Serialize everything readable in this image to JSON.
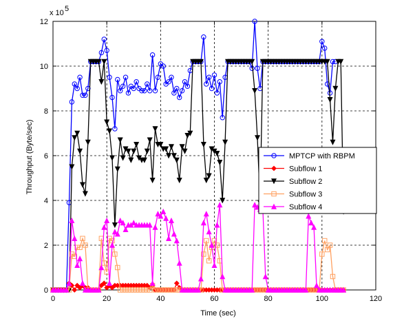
{
  "chart_data": {
    "type": "line",
    "xlabel": "Time (sec)",
    "ylabel": "Throughput (Byte/sec)",
    "x_ticks": [
      "0",
      "20",
      "40",
      "60",
      "80",
      "100",
      "120"
    ],
    "y_ticks": [
      "0",
      "2",
      "4",
      "6",
      "8",
      "10",
      "12"
    ],
    "xlim": [
      0,
      120
    ],
    "ylim": [
      0,
      12
    ],
    "y_multiplier": "x 10",
    "y_exponent": "5",
    "grid": true,
    "legend_position": "right",
    "series": [
      {
        "name": "MPTCP with RBPM",
        "color": "#0000ff",
        "marker": "circle",
        "x": [
          0,
          1,
          2,
          3,
          4,
          5,
          6,
          7,
          8,
          9,
          10,
          11,
          12,
          13,
          14,
          15,
          16,
          17,
          18,
          19,
          20,
          21,
          22,
          23,
          24,
          25,
          26,
          27,
          28,
          29,
          30,
          31,
          32,
          33,
          34,
          35,
          36,
          37,
          38,
          39,
          40,
          41,
          42,
          43,
          44,
          45,
          46,
          47,
          48,
          49,
          50,
          51,
          52,
          53,
          54,
          55,
          56,
          57,
          58,
          59,
          60,
          61,
          62,
          63,
          64,
          65,
          66,
          67,
          68,
          69,
          70,
          71,
          72,
          73,
          74,
          75,
          76,
          77,
          78,
          79,
          80,
          81,
          82,
          83,
          84,
          85,
          86,
          87,
          88,
          89,
          90,
          91,
          92,
          93,
          94,
          95,
          96,
          97,
          98,
          99,
          100,
          101,
          102,
          103,
          104,
          105
        ],
        "y": [
          0,
          0,
          0,
          0,
          0,
          0,
          3.9,
          8.4,
          9.2,
          9.0,
          9.5,
          8.7,
          8.7,
          9.0,
          10.2,
          10.2,
          10.2,
          10.2,
          10.6,
          11.2,
          10.7,
          9.5,
          8.6,
          7.2,
          9.4,
          8.9,
          9.1,
          9.5,
          8.8,
          9.1,
          9.0,
          9.3,
          9.0,
          8.9,
          8.9,
          9.2,
          8.9,
          10.5,
          8.9,
          9.5,
          10.1,
          10.0,
          9.2,
          9.3,
          9.5,
          8.8,
          9.0,
          8.6,
          8.9,
          9.3,
          9.1,
          9.8,
          10.2,
          10.2,
          10.2,
          10.2,
          11.3,
          9.2,
          9.5,
          9.0,
          9.6,
          8.8,
          9.3,
          7.7,
          9.5,
          10.2,
          10.2,
          10.2,
          10.2,
          10.2,
          10.2,
          10.2,
          10.2,
          10.2,
          9.9,
          12.0,
          9.9,
          9.0,
          10.2,
          10.2,
          10.2,
          10.2,
          10.2,
          10.2,
          10.2,
          10.2,
          10.2,
          10.2,
          10.2,
          10.2,
          10.2,
          10.2,
          10.2,
          10.2,
          10.2,
          10.2,
          10.2,
          10.2,
          10.2,
          10.2,
          11.1,
          10.8,
          9.2,
          8.8,
          10.2,
          10.2
        ]
      },
      {
        "name": "Subflow 1",
        "color": "#ff0000",
        "marker": "diamond",
        "x": [
          0,
          1,
          2,
          3,
          4,
          5,
          6,
          7,
          8,
          9,
          10,
          11,
          12,
          13,
          14,
          15,
          16,
          17,
          18,
          19,
          20,
          21,
          22,
          23,
          24,
          25,
          26,
          27,
          28,
          29,
          30,
          31,
          32,
          33,
          34,
          35,
          36,
          37,
          38,
          39,
          40,
          41,
          42,
          43,
          44,
          45,
          46,
          47,
          48,
          49,
          50,
          51,
          52,
          53,
          54,
          55,
          56,
          57,
          58,
          59,
          60,
          61,
          62,
          63,
          64,
          65,
          66,
          67,
          68,
          69,
          70,
          71,
          72,
          73,
          74,
          75,
          76,
          77,
          78,
          79,
          80,
          81,
          82,
          83,
          84,
          85,
          86,
          87,
          88,
          89,
          90,
          91,
          92,
          93,
          94,
          95,
          96,
          97,
          98,
          99,
          100,
          101,
          102,
          103,
          104,
          105,
          106,
          107,
          108
        ],
        "y": [
          0,
          0,
          0,
          0,
          0,
          0,
          0.3,
          0.2,
          0,
          0.2,
          0.1,
          0.2,
          0.1,
          0.1,
          0,
          0,
          0,
          0,
          0.2,
          0.3,
          0.1,
          0.2,
          0.1,
          0.2,
          0.2,
          0.2,
          0.2,
          0.2,
          0.2,
          0.2,
          0.2,
          0.2,
          0.2,
          0.2,
          0.2,
          0.2,
          0.1,
          0.2,
          0,
          0,
          0,
          0,
          0,
          0,
          0,
          0,
          0.3,
          0.1,
          0,
          0,
          0,
          0,
          0,
          0,
          0,
          0,
          0,
          0,
          0,
          0,
          0,
          0,
          0,
          0,
          0,
          0,
          0,
          0,
          0,
          0,
          0,
          0,
          0,
          0,
          0,
          0,
          0,
          0,
          0,
          0,
          0,
          0,
          0,
          0,
          0,
          0,
          0,
          0,
          0,
          0,
          0,
          0,
          0,
          0,
          0,
          0,
          0,
          0,
          0,
          0,
          0,
          0,
          0,
          0,
          0,
          0,
          0,
          0,
          0
        ]
      },
      {
        "name": "Subflow 2",
        "color": "#000000",
        "marker": "triangle-down",
        "x": [
          0,
          1,
          2,
          3,
          4,
          5,
          6,
          7,
          8,
          9,
          10,
          11,
          12,
          13,
          14,
          15,
          16,
          17,
          18,
          19,
          20,
          21,
          22,
          23,
          24,
          25,
          26,
          27,
          28,
          29,
          30,
          31,
          32,
          33,
          34,
          35,
          36,
          37,
          38,
          39,
          40,
          41,
          42,
          43,
          44,
          45,
          46,
          47,
          48,
          49,
          50,
          51,
          52,
          53,
          54,
          55,
          56,
          57,
          58,
          59,
          60,
          61,
          62,
          63,
          64,
          65,
          66,
          67,
          68,
          69,
          70,
          71,
          72,
          73,
          74,
          75,
          76,
          77,
          78,
          79,
          80,
          81,
          82,
          83,
          84,
          85,
          86,
          87,
          88,
          89,
          90,
          91,
          92,
          93,
          94,
          95,
          96,
          97,
          98,
          99,
          100,
          101,
          102,
          103,
          104,
          105,
          106,
          107,
          108
        ],
        "y": [
          0,
          0,
          0,
          0,
          0,
          0,
          0,
          5.5,
          6.8,
          7.0,
          6.2,
          4.7,
          4.3,
          6.6,
          10.2,
          10.2,
          10.2,
          10.2,
          9.3,
          10.2,
          7.5,
          7.1,
          5.9,
          2.9,
          5.4,
          6.7,
          5.9,
          6.3,
          6.2,
          5.8,
          6.2,
          6.5,
          5.9,
          5.8,
          5.8,
          6.2,
          6.7,
          4.9,
          7.2,
          6.5,
          6.5,
          6.3,
          6.3,
          6.0,
          6.4,
          6.0,
          5.8,
          4.9,
          6.4,
          6.2,
          6.9,
          7.0,
          10.2,
          10.2,
          10.2,
          10.2,
          6.5,
          4.9,
          5.1,
          6.3,
          6.2,
          6.1,
          5.7,
          4.0,
          6.6,
          10.2,
          10.2,
          10.2,
          10.2,
          10.2,
          10.2,
          10.2,
          10.2,
          10.2,
          10.2,
          8.9,
          6.8,
          3.9,
          10.2,
          10.2,
          10.2,
          10.2,
          10.2,
          10.2,
          10.2,
          10.2,
          10.2,
          10.2,
          10.2,
          10.2,
          10.2,
          10.2,
          10.2,
          10.2,
          10.2,
          10.2,
          10.2,
          10.2,
          10.2,
          10.2,
          10.2,
          10.2,
          10.2,
          8.5,
          6.6,
          9.0,
          10.2,
          10.2,
          3.5
        ]
      },
      {
        "name": "Subflow 3",
        "color": "#ffa060",
        "marker": "square",
        "x": [
          0,
          1,
          2,
          3,
          4,
          5,
          6,
          7,
          8,
          9,
          10,
          11,
          12,
          13,
          14,
          15,
          16,
          17,
          18,
          19,
          20,
          21,
          22,
          23,
          24,
          25,
          26,
          27,
          28,
          29,
          30,
          31,
          32,
          33,
          34,
          35,
          36,
          37,
          38,
          39,
          40,
          41,
          42,
          43,
          44,
          45,
          46,
          47,
          48,
          49,
          50,
          51,
          52,
          53,
          54,
          55,
          56,
          57,
          58,
          59,
          60,
          61,
          62,
          63,
          64,
          65,
          66,
          67,
          68,
          69,
          70,
          71,
          72,
          73,
          74,
          75,
          76,
          77,
          78,
          79,
          80,
          81,
          82,
          83,
          84,
          85,
          86,
          87,
          88,
          89,
          90,
          91,
          92,
          93,
          94,
          95,
          96,
          97,
          98,
          99,
          100,
          101,
          102,
          103,
          104,
          105,
          106,
          107,
          108
        ],
        "y": [
          0,
          0,
          0,
          0,
          0,
          0,
          0,
          1.6,
          1.5,
          1.9,
          1.9,
          2.3,
          2.0,
          0,
          0,
          0,
          0,
          0,
          2.3,
          1.2,
          0.8,
          2.3,
          2.2,
          1.6,
          1.0,
          0,
          0,
          0,
          0,
          0,
          0,
          0,
          0,
          0,
          0,
          0,
          0,
          0.2,
          0,
          0,
          0,
          0,
          0,
          0,
          0,
          0,
          0,
          0,
          0,
          0,
          0,
          0,
          0,
          0,
          0,
          0,
          1.6,
          2.2,
          1.3,
          1.9,
          2.2,
          2.0,
          1.3,
          0,
          0,
          0,
          0,
          0,
          0,
          0,
          0,
          0,
          0,
          0,
          0,
          0,
          0,
          0,
          0,
          0,
          0,
          0,
          0,
          0,
          0,
          0,
          0,
          0,
          0,
          0,
          0,
          0,
          0,
          0,
          0,
          0,
          0,
          0,
          0,
          0,
          1.6,
          2.2,
          1.8,
          2.0,
          0.6,
          0,
          0,
          0,
          0
        ]
      },
      {
        "name": "Subflow 4",
        "color": "#ff00ff",
        "marker": "triangle-up",
        "x": [
          0,
          1,
          2,
          3,
          4,
          5,
          6,
          7,
          8,
          9,
          10,
          11,
          12,
          13,
          14,
          15,
          16,
          17,
          18,
          19,
          20,
          21,
          22,
          23,
          24,
          25,
          26,
          27,
          28,
          29,
          30,
          31,
          32,
          33,
          34,
          35,
          36,
          37,
          38,
          39,
          40,
          41,
          42,
          43,
          44,
          45,
          46,
          47,
          48,
          49,
          50,
          51,
          52,
          53,
          54,
          55,
          56,
          57,
          58,
          59,
          60,
          61,
          62,
          63,
          64,
          65,
          66,
          67,
          68,
          69,
          70,
          71,
          72,
          73,
          74,
          75,
          76,
          77,
          78,
          79,
          80,
          81,
          82,
          83,
          84,
          85,
          86,
          87,
          88,
          89,
          90,
          91,
          92,
          93,
          94,
          95,
          96,
          97,
          98,
          99,
          100,
          101,
          102,
          103,
          104,
          105,
          106,
          107,
          108
        ],
        "y": [
          0,
          0,
          0,
          0,
          0,
          0,
          0.3,
          3.1,
          2.3,
          1.1,
          1.4,
          0.3,
          0,
          0,
          0,
          0,
          0,
          0,
          1.0,
          2.8,
          3.1,
          0.3,
          2.0,
          2.6,
          2.5,
          3.1,
          3.0,
          2.7,
          2.9,
          2.9,
          3.0,
          2.9,
          2.9,
          2.9,
          2.9,
          2.9,
          2.9,
          0.3,
          2.8,
          3.4,
          3.3,
          3.5,
          3.2,
          2.3,
          3.1,
          2.5,
          2.2,
          1.2,
          0,
          0,
          0,
          0,
          0,
          0,
          0,
          0.5,
          3.0,
          3.4,
          2.6,
          2.0,
          1.1,
          2.9,
          3.8,
          0.6,
          0,
          0,
          0,
          0,
          0,
          0,
          0,
          0,
          0,
          0,
          0,
          3.8,
          3.7,
          3.6,
          3.6,
          0.6,
          0,
          0,
          0,
          0,
          0,
          0,
          0,
          0,
          0,
          0,
          0,
          0,
          0,
          0,
          0,
          3.3,
          3.0,
          2.8,
          0.2,
          0,
          0,
          0,
          0,
          0,
          0,
          0,
          0,
          0,
          0
        ]
      }
    ]
  }
}
